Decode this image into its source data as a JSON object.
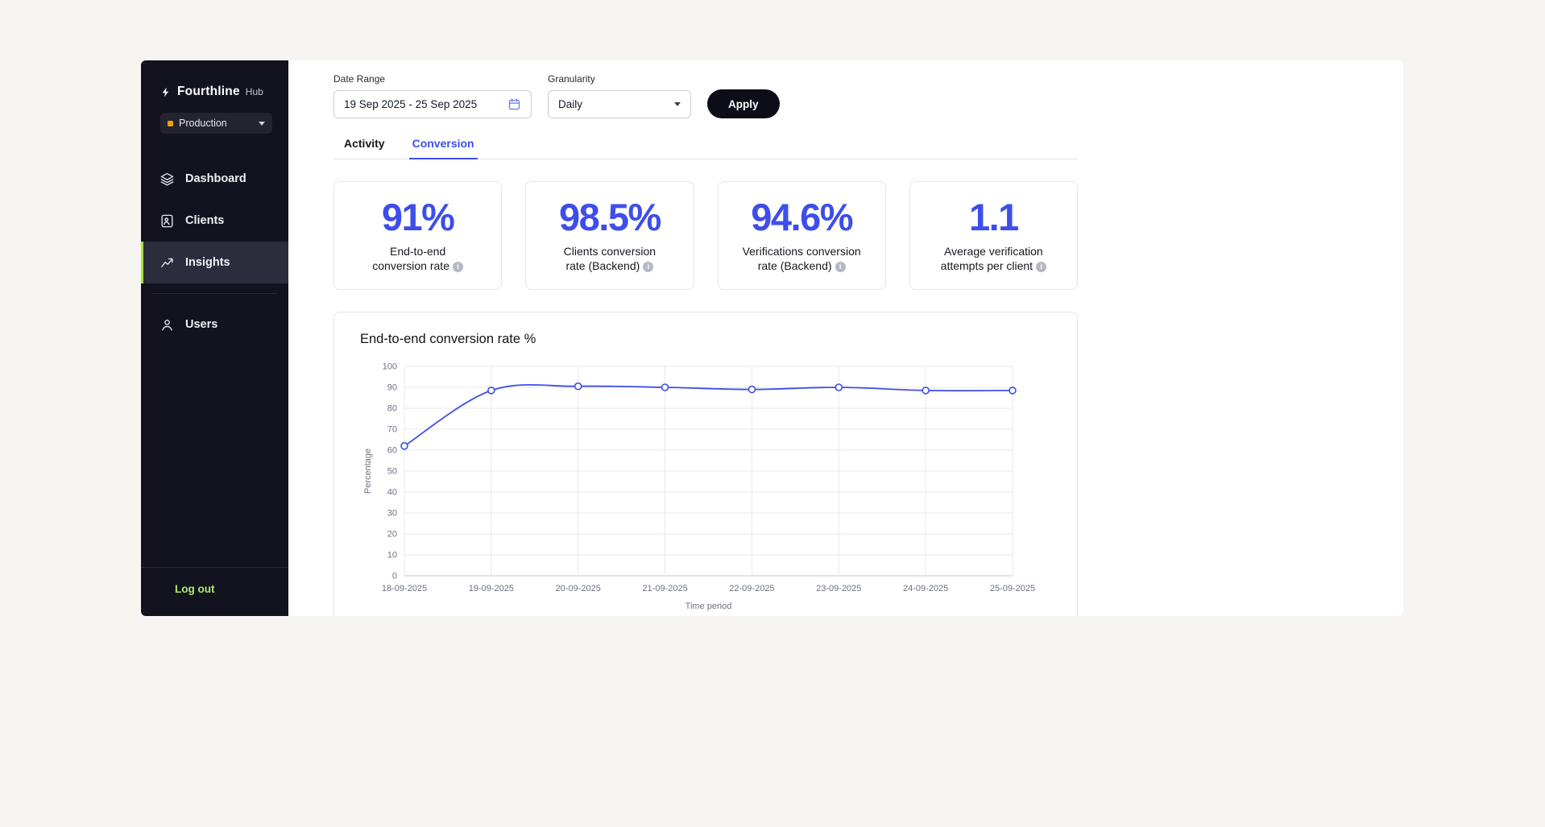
{
  "colors": {
    "accent": "#3d4eea",
    "lime": "#a3e635",
    "lime_text": "#a9ee6a",
    "env_dot": "#f59e0b",
    "sidebar_bg": "#12131e"
  },
  "sidebar": {
    "logo": {
      "brand": "Fourthline",
      "suffix": "Hub"
    },
    "environment": {
      "label": "Production"
    },
    "items": [
      {
        "label": "Dashboard",
        "icon": "layers-icon",
        "active": false
      },
      {
        "label": "Clients",
        "icon": "client-file-icon",
        "active": false
      },
      {
        "label": "Insights",
        "icon": "trend-chart-icon",
        "active": true
      },
      {
        "label": "Users",
        "icon": "user-icon",
        "active": false,
        "divider_before": true
      }
    ],
    "logout_label": "Log out"
  },
  "filters": {
    "date_range": {
      "label": "Date Range",
      "value": "19 Sep 2025 - 25 Sep 2025"
    },
    "granularity": {
      "label": "Granularity",
      "value": "Daily"
    },
    "apply_label": "Apply"
  },
  "tabs": [
    {
      "label": "Activity",
      "active": false
    },
    {
      "label": "Conversion",
      "active": true
    }
  ],
  "stats": [
    {
      "value": "91%",
      "lines": [
        "End-to-end",
        "conversion rate"
      ]
    },
    {
      "value": "98.5%",
      "lines": [
        "Clients conversion",
        "rate (Backend)"
      ]
    },
    {
      "value": "94.6%",
      "lines": [
        "Verifications conversion",
        "rate (Backend)"
      ]
    },
    {
      "value": "1.1",
      "lines": [
        "Average verification",
        "attempts per client"
      ]
    }
  ],
  "chart_data": {
    "type": "line",
    "title": "End-to-end conversion rate %",
    "x": [
      "18-09-2025",
      "19-09-2025",
      "20-09-2025",
      "21-09-2025",
      "22-09-2025",
      "23-09-2025",
      "24-09-2025",
      "25-09-2025"
    ],
    "values": [
      62,
      88.5,
      90.5,
      90,
      89,
      90,
      88.5,
      88.5
    ],
    "xlabel": "Time period",
    "ylabel": "Percentage",
    "ylim": [
      0,
      100
    ],
    "yticks": [
      0,
      10,
      20,
      30,
      40,
      50,
      60,
      70,
      80,
      90,
      100
    ],
    "grid": true,
    "legend": "none",
    "line_color": "#3d4eea",
    "marker": "open-circle"
  }
}
